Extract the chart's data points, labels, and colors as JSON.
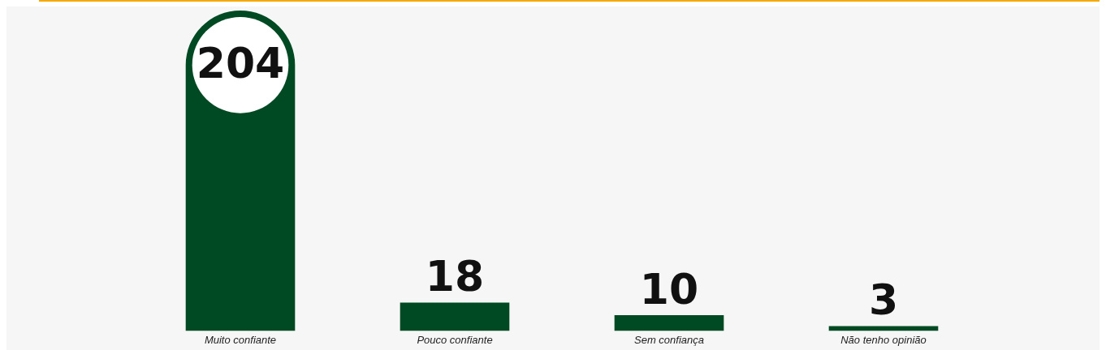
{
  "chart_data": {
    "type": "bar",
    "categories": [
      "Muito confiante",
      "Pouco confiante",
      "Sem confiança",
      "Não tenho opinião"
    ],
    "values": [
      204,
      18,
      10,
      3
    ],
    "color": "#004a23",
    "data_labels": true,
    "grid": false,
    "legend": false
  }
}
